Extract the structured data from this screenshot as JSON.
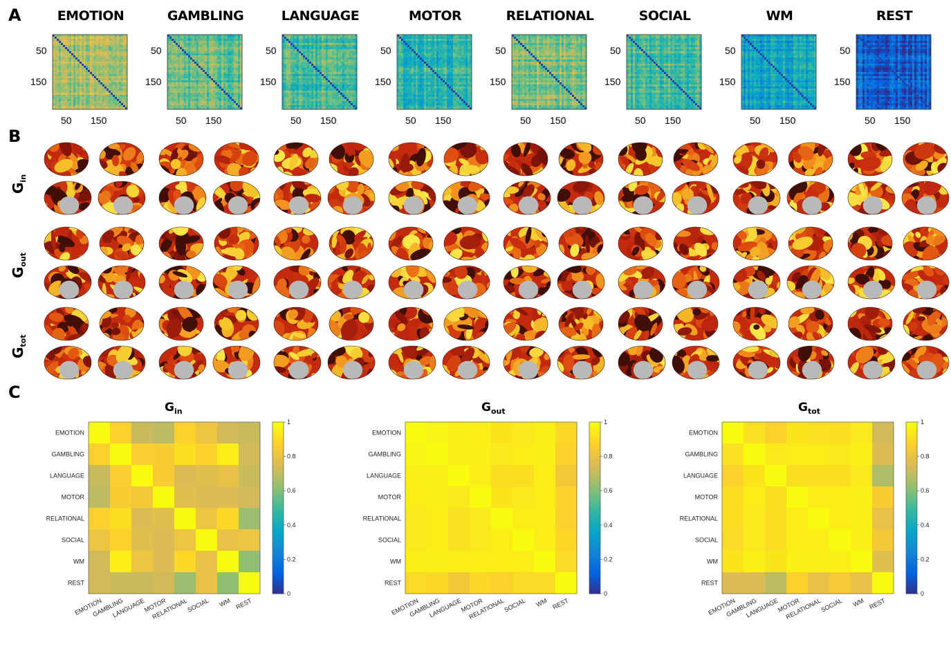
{
  "panel_labels": {
    "a": "A",
    "b": "B",
    "c": "C"
  },
  "tasks": [
    "EMOTION",
    "GAMBLING",
    "LANGUAGE",
    "MOTOR",
    "RELATIONAL",
    "SOCIAL",
    "WM",
    "REST"
  ],
  "matrix_ticks": {
    "y": [
      "50",
      "150"
    ],
    "x": [
      "50",
      "150"
    ]
  },
  "panel_b_rows": [
    {
      "base": "G",
      "sub": "in"
    },
    {
      "base": "G",
      "sub": "out"
    },
    {
      "base": "G",
      "sub": "tot"
    }
  ],
  "colors": {
    "parula": [
      "#352a87",
      "#0363e1",
      "#1485d4",
      "#06a7c6",
      "#38b99e",
      "#92bf73",
      "#d9ba56",
      "#fcce2e",
      "#f9fb0e"
    ],
    "brain_hot": [
      "#2a0d08",
      "#7a1208",
      "#c0260e",
      "#e05010",
      "#f08a1c",
      "#f6c52a",
      "#f8e84a"
    ],
    "brain_medial_wall": "#b9b9b9"
  },
  "chart_data": [
    {
      "type": "heatmap",
      "title_base": "G",
      "title_sub": "in",
      "categories": [
        "EMOTION",
        "GAMBLING",
        "LANGUAGE",
        "MOTOR",
        "RELATIONAL",
        "SOCIAL",
        "WM",
        "REST"
      ],
      "colorbar": {
        "min": 0,
        "max": 1,
        "ticks": [
          "0",
          "0.2",
          "0.4",
          "0.6",
          "0.8",
          "1"
        ]
      },
      "values": [
        [
          1.0,
          0.88,
          0.72,
          0.7,
          0.88,
          0.82,
          0.74,
          0.72
        ],
        [
          0.88,
          1.0,
          0.87,
          0.86,
          0.92,
          0.88,
          0.96,
          0.74
        ],
        [
          0.72,
          0.87,
          1.0,
          0.86,
          0.76,
          0.78,
          0.8,
          0.72
        ],
        [
          0.7,
          0.86,
          0.84,
          1.0,
          0.78,
          0.76,
          0.76,
          0.74
        ],
        [
          0.88,
          0.92,
          0.76,
          0.78,
          1.0,
          0.82,
          0.9,
          0.64
        ],
        [
          0.82,
          0.88,
          0.78,
          0.76,
          0.82,
          1.0,
          0.8,
          0.82
        ],
        [
          0.74,
          0.96,
          0.82,
          0.76,
          0.9,
          0.8,
          1.0,
          0.62
        ],
        [
          0.74,
          0.72,
          0.72,
          0.74,
          0.64,
          0.8,
          0.62,
          1.0
        ]
      ]
    },
    {
      "type": "heatmap",
      "title_base": "G",
      "title_sub": "out",
      "categories": [
        "EMOTION",
        "GAMBLING",
        "LANGUAGE",
        "MOTOR",
        "RELATIONAL",
        "SOCIAL",
        "WM",
        "REST"
      ],
      "colorbar": {
        "min": 0,
        "max": 1,
        "ticks": [
          "0",
          "0.2",
          "0.4",
          "0.6",
          "0.8",
          "1"
        ]
      },
      "values": [
        [
          1.0,
          0.98,
          0.97,
          0.96,
          0.94,
          0.95,
          0.97,
          0.9
        ],
        [
          0.98,
          1.0,
          0.97,
          0.97,
          0.95,
          0.96,
          0.97,
          0.89
        ],
        [
          0.97,
          0.97,
          1.0,
          0.96,
          0.92,
          0.92,
          0.96,
          0.84
        ],
        [
          0.96,
          0.97,
          0.95,
          1.0,
          0.94,
          0.95,
          0.96,
          0.89
        ],
        [
          0.95,
          0.96,
          0.93,
          0.95,
          1.0,
          0.96,
          0.96,
          0.88
        ],
        [
          0.95,
          0.96,
          0.93,
          0.95,
          0.96,
          1.0,
          0.96,
          0.9
        ],
        [
          0.97,
          0.97,
          0.96,
          0.96,
          0.96,
          0.96,
          1.0,
          0.91
        ],
        [
          0.91,
          0.9,
          0.84,
          0.9,
          0.88,
          0.91,
          0.91,
          1.0
        ]
      ]
    },
    {
      "type": "heatmap",
      "title_base": "G",
      "title_sub": "tot",
      "categories": [
        "EMOTION",
        "GAMBLING",
        "LANGUAGE",
        "MOTOR",
        "RELATIONAL",
        "SOCIAL",
        "WM",
        "REST"
      ],
      "colorbar": {
        "min": 0,
        "max": 1,
        "ticks": [
          "0",
          "0.2",
          "0.4",
          "0.6",
          "0.8",
          "1"
        ]
      },
      "values": [
        [
          1.0,
          0.93,
          0.88,
          0.94,
          0.93,
          0.92,
          0.95,
          0.74
        ],
        [
          0.93,
          1.0,
          0.95,
          0.96,
          0.96,
          0.95,
          0.97,
          0.76
        ],
        [
          0.88,
          0.94,
          1.0,
          0.92,
          0.92,
          0.92,
          0.95,
          0.68
        ],
        [
          0.92,
          0.96,
          0.92,
          1.0,
          0.96,
          0.96,
          0.97,
          0.86
        ],
        [
          0.92,
          0.95,
          0.92,
          0.96,
          1.0,
          0.96,
          0.97,
          0.8
        ],
        [
          0.91,
          0.95,
          0.92,
          0.96,
          0.96,
          1.0,
          0.97,
          0.84
        ],
        [
          0.94,
          0.97,
          0.94,
          0.97,
          0.97,
          0.97,
          1.0,
          0.78
        ],
        [
          0.76,
          0.76,
          0.7,
          0.88,
          0.8,
          0.85,
          0.8,
          1.0
        ]
      ]
    }
  ]
}
